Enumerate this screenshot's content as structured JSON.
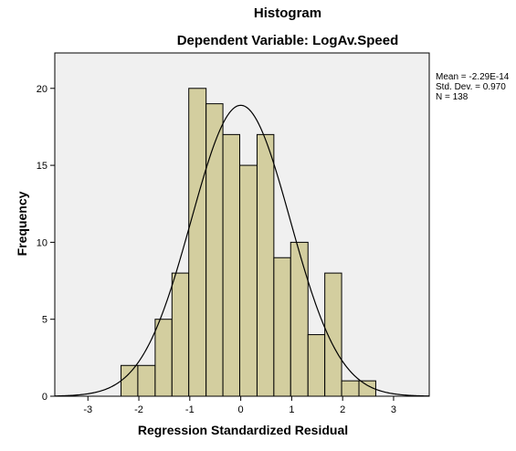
{
  "chart_data": {
    "type": "bar",
    "title": "Histogram",
    "subtitle": "Dependent Variable: LogAv.Speed",
    "xlabel": "Regression Standardized Residual",
    "ylabel": "Frequency",
    "xlim": [
      -3.65,
      3.7
    ],
    "ylim": [
      0,
      22.3
    ],
    "x_ticks": [
      "-3",
      "-2",
      "-1",
      "0",
      "1",
      "2",
      "3"
    ],
    "x_tick_values": [
      -3,
      -2,
      -1,
      0,
      1,
      2,
      3
    ],
    "y_ticks": [
      "0",
      "5",
      "10",
      "15",
      "20"
    ],
    "y_tick_values": [
      0,
      5,
      10,
      15,
      20
    ],
    "bins": [
      {
        "x0": -2.35,
        "x1": -2.02,
        "value": 2
      },
      {
        "x0": -2.02,
        "x1": -1.68,
        "value": 2
      },
      {
        "x0": -1.68,
        "x1": -1.35,
        "value": 5
      },
      {
        "x0": -1.35,
        "x1": -1.02,
        "value": 8
      },
      {
        "x0": -1.02,
        "x1": -0.68,
        "value": 20
      },
      {
        "x0": -0.68,
        "x1": -0.35,
        "value": 19
      },
      {
        "x0": -0.35,
        "x1": -0.02,
        "value": 17
      },
      {
        "x0": -0.02,
        "x1": 0.32,
        "value": 15
      },
      {
        "x0": 0.32,
        "x1": 0.65,
        "value": 17
      },
      {
        "x0": 0.65,
        "x1": 0.98,
        "value": 9
      },
      {
        "x0": 0.98,
        "x1": 1.32,
        "value": 10
      },
      {
        "x0": 1.32,
        "x1": 1.65,
        "value": 4
      },
      {
        "x0": 1.65,
        "x1": 1.98,
        "value": 8
      },
      {
        "x0": 1.98,
        "x1": 2.32,
        "value": 1
      },
      {
        "x0": 2.32,
        "x1": 2.65,
        "value": 1
      }
    ],
    "normal_curve": {
      "mean": -2.29e-14,
      "sd": 0.97,
      "n": 138,
      "bin_width": 0.333
    },
    "stats": [
      "Mean = -2.29E-14",
      "Std. Dev. = 0.970",
      "N = 138"
    ],
    "colors": {
      "bar_fill": "#d3ce9f",
      "bar_stroke": "#000000",
      "plot_bg": "#f0f0f0",
      "curve": "#000000"
    },
    "grid": false
  }
}
